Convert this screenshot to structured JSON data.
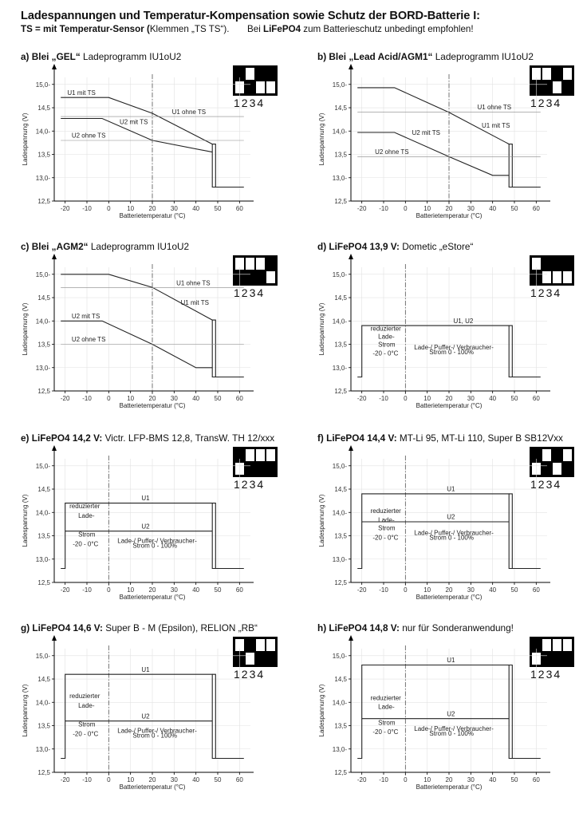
{
  "header": {
    "title": "Ladespannungen und Temperatur-Kompensation sowie Schutz der BORD-Batterie I:",
    "sub_bold1": "TS = mit Temperatur-Sensor (",
    "sub_normal1": "Klemmen „TS   TS“).",
    "sub_normal2": "Bei ",
    "sub_bold2": "LiFePO4",
    "sub_normal3": " zum Batterieschutz unbedingt empfohlen!"
  },
  "axis": {
    "ylabel": "Ladespannung (V)",
    "xlabel": "Batterietemperatur (°C)",
    "yticks": [
      "15,0-",
      "14,5",
      "14,0-",
      "13,5",
      "13,0-",
      "12,5"
    ],
    "xticks": [
      "-20",
      "-10",
      "0",
      "10",
      "20",
      "30",
      "40",
      "50",
      "60"
    ]
  },
  "dip_numbers": "1234",
  "panels": [
    {
      "id": "a",
      "title_bold": "a)  Blei  „GEL“",
      "title_normal": "  Ladeprogramm IU1oU2",
      "dip": [
        1,
        0,
        1,
        1
      ],
      "vline": 20,
      "lines": [
        {
          "pts": [
            [
              -22,
              14.72
            ],
            [
              0,
              14.72
            ],
            [
              20,
              14.38
            ],
            [
              47.5,
              13.72
            ],
            [
              47.5,
              12.8
            ],
            [
              62,
              12.8
            ]
          ],
          "w": 1.1
        },
        {
          "pts": [
            [
              -22,
              14.27
            ],
            [
              -3,
              14.27
            ],
            [
              20,
              13.8
            ],
            [
              47.5,
              13.55
            ]
          ],
          "w": 1.1
        },
        {
          "pts": [
            [
              47.5,
              13.72
            ],
            [
              49,
              13.72
            ],
            [
              49,
              12.8
            ]
          ],
          "w": 1.1
        },
        {
          "pts": [
            [
              -22,
              14.31
            ],
            [
              62,
              14.31
            ]
          ],
          "w": 0.6,
          "c": "#888"
        },
        {
          "pts": [
            [
              -22,
              13.8
            ],
            [
              62,
              13.8
            ]
          ],
          "w": 0.6,
          "c": "#888"
        }
      ],
      "labels": [
        {
          "t": "U1 mit TS",
          "x": -19,
          "y": 14.76
        },
        {
          "t": "U1 ohne TS",
          "x": 29,
          "y": 14.35
        },
        {
          "t": "U2 mit TS",
          "x": 5,
          "y": 14.13
        },
        {
          "t": "U2 ohne TS",
          "x": -17,
          "y": 13.84
        }
      ]
    },
    {
      "id": "b",
      "title_bold": "b)  Blei  „Lead Acid/AGM1“",
      "title_normal": "  Ladeprogramm IU1oU2",
      "dip": [
        0,
        0,
        1,
        0
      ],
      "vline": 20,
      "lines": [
        {
          "pts": [
            [
              -22,
              14.93
            ],
            [
              -5,
              14.93
            ],
            [
              20,
              14.4
            ],
            [
              47.5,
              13.72
            ],
            [
              47.5,
              12.8
            ],
            [
              62,
              12.8
            ]
          ],
          "w": 1.1
        },
        {
          "pts": [
            [
              -22,
              13.97
            ],
            [
              -5,
              13.97
            ],
            [
              20,
              13.45
            ],
            [
              40,
              13.05
            ],
            [
              47.5,
              13.05
            ]
          ],
          "w": 1.1
        },
        {
          "pts": [
            [
              47.5,
              13.72
            ],
            [
              49,
              13.72
            ],
            [
              49,
              12.8
            ]
          ],
          "w": 1.1
        },
        {
          "pts": [
            [
              -22,
              14.41
            ],
            [
              62,
              14.41
            ]
          ],
          "w": 0.6,
          "c": "#888"
        },
        {
          "pts": [
            [
              -22,
              13.45
            ],
            [
              62,
              13.45
            ]
          ],
          "w": 0.6,
          "c": "#888"
        }
      ],
      "labels": [
        {
          "t": "U1 ohne TS",
          "x": 33,
          "y": 14.45
        },
        {
          "t": "U1 mit TS",
          "x": 35,
          "y": 14.06
        },
        {
          "t": "U2 mit TS",
          "x": 3,
          "y": 13.9
        },
        {
          "t": "U2 ohne TS",
          "x": -14,
          "y": 13.49
        }
      ]
    },
    {
      "id": "c",
      "title_bold": "c)  Blei  „AGM2“",
      "title_normal": "  Ladeprogramm IU1oU2",
      "dip": [
        0,
        0,
        0,
        1
      ],
      "vline": 20,
      "lines": [
        {
          "pts": [
            [
              -22,
              15.0
            ],
            [
              0,
              15.0
            ],
            [
              20,
              14.72
            ],
            [
              47.5,
              14.02
            ],
            [
              47.5,
              12.8
            ],
            [
              62,
              12.8
            ]
          ],
          "w": 1.1
        },
        {
          "pts": [
            [
              -22,
              14.0
            ],
            [
              -3,
              14.0
            ],
            [
              20,
              13.5
            ],
            [
              40,
              13.0
            ],
            [
              47.5,
              13.0
            ]
          ],
          "w": 1.1
        },
        {
          "pts": [
            [
              47.5,
              14.02
            ],
            [
              49,
              14.02
            ],
            [
              49,
              12.8
            ]
          ],
          "w": 1.1
        },
        {
          "pts": [
            [
              -22,
              14.71
            ],
            [
              62,
              14.71
            ]
          ],
          "w": 0.6,
          "c": "#888"
        },
        {
          "pts": [
            [
              -22,
              13.5
            ],
            [
              62,
              13.5
            ]
          ],
          "w": 0.6,
          "c": "#888"
        }
      ],
      "labels": [
        {
          "t": "U1 ohne TS",
          "x": 31,
          "y": 14.75
        },
        {
          "t": "U1 mit TS",
          "x": 33,
          "y": 14.33
        },
        {
          "t": "U2 mit TS",
          "x": -17,
          "y": 14.04
        },
        {
          "t": "U2 ohne TS",
          "x": -17,
          "y": 13.54
        }
      ]
    },
    {
      "id": "d",
      "title_bold": "d)  LiFePO4 13,9 V:",
      "title_normal": "  Dometic  „eStore“",
      "dip": [
        0,
        1,
        1,
        1
      ],
      "vline": 0,
      "lines": [
        {
          "pts": [
            [
              -22,
              12.8
            ],
            [
              -20,
              12.8
            ],
            [
              -20,
              13.9
            ],
            [
              47.5,
              13.9
            ],
            [
              47.5,
              12.8
            ],
            [
              62,
              12.8
            ]
          ],
          "w": 1.1
        },
        {
          "pts": [
            [
              47.5,
              13.9
            ],
            [
              49,
              13.9
            ],
            [
              49,
              12.8
            ]
          ],
          "w": 1.1
        }
      ],
      "labels": [
        {
          "t": "U1, U2",
          "x": 22,
          "y": 13.94
        },
        {
          "t": "reduzierter",
          "x": -16,
          "y": 13.77
        },
        {
          "t": "Lade-",
          "x": -12.5,
          "y": 13.6
        },
        {
          "t": "Strom",
          "x": -12.5,
          "y": 13.43
        },
        {
          "t": "-20 - 0°C",
          "x": -15,
          "y": 13.24
        },
        {
          "t": "Lade-/ Puffer-/ Verbraucher-",
          "x": 4,
          "y": 13.37
        },
        {
          "t": "Strom  0 - 100%",
          "x": 11,
          "y": 13.27
        }
      ]
    },
    {
      "id": "e",
      "title_bold": "e)  LiFePO4  14,2 V:",
      "title_normal": "  Victr. LFP-BMS 12,8,  TransW. TH 12/xxx",
      "dip": [
        1,
        0,
        0,
        0
      ],
      "vline": 0,
      "lines": [
        {
          "pts": [
            [
              -22,
              12.8
            ],
            [
              -20,
              12.8
            ],
            [
              -20,
              14.2
            ],
            [
              47.5,
              14.2
            ],
            [
              47.5,
              12.8
            ],
            [
              62,
              12.8
            ]
          ],
          "w": 1.1
        },
        {
          "pts": [
            [
              -20,
              13.6
            ],
            [
              47.5,
              13.6
            ]
          ],
          "w": 1.1
        },
        {
          "pts": [
            [
              47.5,
              14.2
            ],
            [
              49,
              14.2
            ],
            [
              49,
              12.8
            ]
          ],
          "w": 1.1
        }
      ],
      "labels": [
        {
          "t": "U1",
          "x": 15,
          "y": 14.24
        },
        {
          "t": "reduzierter",
          "x": -18,
          "y": 14.07
        },
        {
          "t": "Lade-",
          "x": -14,
          "y": 13.87
        },
        {
          "t": "U2",
          "x": 15,
          "y": 13.64
        },
        {
          "t": "Strom",
          "x": -14,
          "y": 13.47
        },
        {
          "t": "-20 - 0°C",
          "x": -16.5,
          "y": 13.26
        },
        {
          "t": "Lade-/ Puffer-/ Verbraucher-",
          "x": 4,
          "y": 13.33
        },
        {
          "t": "Strom  0 - 100%",
          "x": 11,
          "y": 13.23
        }
      ]
    },
    {
      "id": "f",
      "title_bold": "f)  LiFePO4  14,4 V:",
      "title_normal": "  MT-Li 95,  MT-Li 110,  Super B SB12Vxx",
      "dip": [
        1,
        0,
        1,
        0
      ],
      "vline": 0,
      "lines": [
        {
          "pts": [
            [
              -22,
              12.8
            ],
            [
              -20,
              12.8
            ],
            [
              -20,
              14.4
            ],
            [
              47.5,
              14.4
            ],
            [
              47.5,
              12.8
            ],
            [
              62,
              12.8
            ]
          ],
          "w": 1.1
        },
        {
          "pts": [
            [
              -20,
              13.8
            ],
            [
              47.5,
              13.8
            ]
          ],
          "w": 1.1
        },
        {
          "pts": [
            [
              47.5,
              14.4
            ],
            [
              49,
              14.4
            ],
            [
              49,
              12.8
            ]
          ],
          "w": 1.1
        }
      ],
      "labels": [
        {
          "t": "U1",
          "x": 19,
          "y": 14.44
        },
        {
          "t": "reduzierter",
          "x": -16,
          "y": 13.97
        },
        {
          "t": "U2",
          "x": 19,
          "y": 13.84
        },
        {
          "t": "Lade-",
          "x": -12.5,
          "y": 13.77
        },
        {
          "t": "Strom",
          "x": -12.5,
          "y": 13.6
        },
        {
          "t": "-20 - 0°C",
          "x": -15,
          "y": 13.4
        },
        {
          "t": "Lade-/ Puffer-/ Verbraucher-",
          "x": 4,
          "y": 13.5
        },
        {
          "t": "Strom  0 - 100%",
          "x": 11,
          "y": 13.4
        }
      ]
    },
    {
      "id": "g",
      "title_bold": "g)  LiFePO4  14,6 V:",
      "title_normal": "  Super B - M (Epsilon),  RELION „RB“",
      "dip": [
        0,
        1,
        0,
        0
      ],
      "vline": 0,
      "lines": [
        {
          "pts": [
            [
              -22,
              12.8
            ],
            [
              -20,
              12.8
            ],
            [
              -20,
              14.6
            ],
            [
              47.5,
              14.6
            ],
            [
              47.5,
              12.8
            ],
            [
              62,
              12.8
            ]
          ],
          "w": 1.1
        },
        {
          "pts": [
            [
              -20,
              13.6
            ],
            [
              47.5,
              13.6
            ]
          ],
          "w": 1.1
        },
        {
          "pts": [
            [
              47.5,
              14.6
            ],
            [
              49,
              14.6
            ],
            [
              49,
              12.8
            ]
          ],
          "w": 1.1
        }
      ],
      "labels": [
        {
          "t": "U1",
          "x": 15,
          "y": 14.64
        },
        {
          "t": "reduzierter",
          "x": -18,
          "y": 14.07
        },
        {
          "t": "Lade-",
          "x": -14,
          "y": 13.87
        },
        {
          "t": "U2",
          "x": 15,
          "y": 13.64
        },
        {
          "t": "Strom",
          "x": -14,
          "y": 13.47
        },
        {
          "t": "-20 - 0°C",
          "x": -16.5,
          "y": 13.26
        },
        {
          "t": "Lade-/ Puffer-/ Verbraucher-",
          "x": 4,
          "y": 13.33
        },
        {
          "t": "Strom  0 - 100%",
          "x": 11,
          "y": 13.23
        }
      ]
    },
    {
      "id": "h",
      "title_bold": "h)  LiFePO4  14,8 V:",
      "title_normal": " nur für Sonderanwendung!",
      "dip": [
        1,
        0,
        0,
        0
      ],
      "vline": 0,
      "lines": [
        {
          "pts": [
            [
              -22,
              12.8
            ],
            [
              -20,
              12.8
            ],
            [
              -20,
              14.8
            ],
            [
              47.5,
              14.8
            ],
            [
              47.5,
              12.8
            ],
            [
              62,
              12.8
            ]
          ],
          "w": 1.1
        },
        {
          "pts": [
            [
              -20,
              13.65
            ],
            [
              47.5,
              13.65
            ]
          ],
          "w": 1.1
        },
        {
          "pts": [
            [
              47.5,
              14.8
            ],
            [
              49,
              14.8
            ],
            [
              49,
              12.8
            ]
          ],
          "w": 1.1
        }
      ],
      "labels": [
        {
          "t": "U1",
          "x": 19,
          "y": 14.84
        },
        {
          "t": "reduzierter",
          "x": -16,
          "y": 14.03
        },
        {
          "t": "U2",
          "x": 19,
          "y": 13.69
        },
        {
          "t": "Lade-",
          "x": -12.5,
          "y": 13.84
        },
        {
          "t": "Strom",
          "x": -12.5,
          "y": 13.5
        },
        {
          "t": "-20 - 0°C",
          "x": -15,
          "y": 13.3
        },
        {
          "t": "Lade-/ Puffer-/ Verbraucher-",
          "x": 4,
          "y": 13.37
        },
        {
          "t": "Strom  0 - 100%",
          "x": 11,
          "y": 13.27
        }
      ]
    }
  ]
}
